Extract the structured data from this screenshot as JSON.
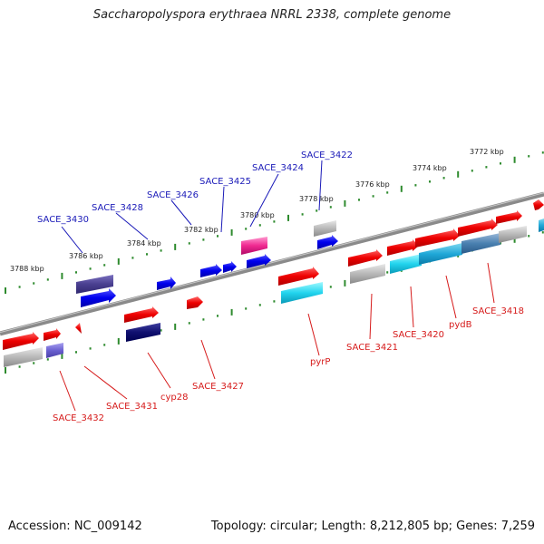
{
  "title": "Saccharopolyspora erythraea NRRL 2338, complete genome",
  "footer": {
    "accession": "Accession: NC_009142",
    "summary": "Topology: circular; Length: 8,212,805 bp; Genes: 7,259"
  },
  "scale_labels": [
    "3772 kbp",
    "3774 kbp",
    "3776 kbp",
    "3778 kbp",
    "3780 kbp",
    "3782 kbp",
    "3784 kbp",
    "3786 kbp",
    "3788 kbp"
  ],
  "top_strand_labels": [
    "SACE_3422",
    "SACE_3424",
    "SACE_3425",
    "SACE_3426",
    "SACE_3428",
    "SACE_3430"
  ],
  "bottom_strand_labels": [
    "SACE_3418",
    "pydB",
    "SACE_3420",
    "SACE_3421",
    "pyrP",
    "SACE_3427",
    "cyp28",
    "SACE_3431",
    "SACE_3432"
  ],
  "colors": {
    "backbone": "#808080",
    "scale_ticks": "#2e8b2e",
    "top_labels": "#1a1ab8",
    "bottom_labels": "#d61a1a"
  }
}
